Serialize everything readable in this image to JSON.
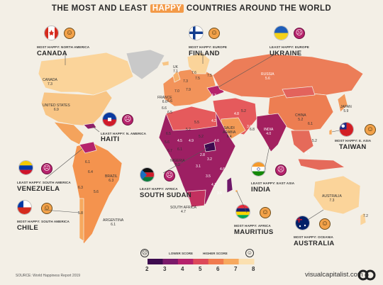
{
  "title": {
    "pre": "THE MOST AND LEAST ",
    "highlight": "HAPPY",
    "post": " COUNTRIES AROUND THE WORLD"
  },
  "callouts": {
    "canada": {
      "caption": "MOST HAPPY: NORTH AMERICA",
      "name": "CANADA",
      "mood": "happy"
    },
    "finland": {
      "caption": "MOST HAPPY: EUROPE",
      "name": "FINLAND",
      "mood": "happy"
    },
    "ukraine": {
      "caption": "LEAST HAPPY: EUROPE",
      "name": "UKRAINE",
      "mood": "sad"
    },
    "haiti": {
      "caption": "LEAST HAPPY: N. AMERICA",
      "name": "HAITI",
      "mood": "sad"
    },
    "taiwan": {
      "caption": "MOST HAPPY: E. ASIA",
      "name": "TAIWAN",
      "mood": "happy"
    },
    "venezuela": {
      "caption": "LEAST HAPPY: SOUTH AMERICA",
      "name": "VENEZUELA",
      "mood": "sad"
    },
    "south_sudan": {
      "caption": "LEAST HAPPY: AFRICA",
      "name": "SOUTH SUDAN",
      "mood": "sad"
    },
    "india": {
      "caption": "LEAST HAPPY: EAST ASIA",
      "name": "INDIA",
      "mood": "sad"
    },
    "chile": {
      "caption": "MOST HAPPY: SOUTH AMERICA",
      "name": "CHILE",
      "mood": "happy"
    },
    "mauritius": {
      "caption": "MOST HAPPY: AFRICA",
      "name": "MAURITIUS",
      "mood": "happy"
    },
    "australia": {
      "caption": "MOST HAPPY: OCEANIA",
      "name": "AUSTRALIA",
      "mood": "happy"
    }
  },
  "map_labels": {
    "canada": "CANADA\n7.3",
    "usa": "UNITED STATES\n6.9",
    "russia": "RUSSIA\n5.6",
    "china": "CHINA\n5.2",
    "india": "INDIA\n4.0",
    "japan": "JAPAN\n5.9",
    "saudi": "SAUDI\nARABIA\n6.4",
    "nigeria": "NIGERIA\n5.3",
    "south_africa": "SOUTH AFRICA\n4.7",
    "brazil": "BRAZIL\n6.3",
    "argentina": "ARGENTINA\n6.1",
    "australia": "AUSTRALIA\n7.3",
    "france": "FRANCE\n6.6",
    "uk": "UK\n7.1"
  },
  "scores": [
    "7.6",
    "7.5",
    "7.3",
    "7.5",
    "7.9",
    "7.0",
    "6.6",
    "6.6",
    "6.5",
    "4.3",
    "4.8",
    "5.2",
    "3.6",
    "4.2",
    "5.5",
    "5.2",
    "4.5",
    "4.9",
    "5.2",
    "6.5",
    "5.6",
    "6.1",
    "6.7",
    "6.1",
    "6.4",
    "6.3",
    "5.8",
    "5.6",
    "4.6",
    "3.2",
    "3.1",
    "2.8",
    "3.5",
    "4.6",
    "4.7",
    "3.5",
    "6.8",
    "6.1",
    "7.2",
    "5.2",
    "4.5"
  ],
  "legend": {
    "low_label": "LOWER SCORE",
    "high_label": "HIGHER SCORE",
    "ticks": [
      "2",
      "3",
      "4",
      "5",
      "6",
      "7",
      "8"
    ]
  },
  "colors": [
    "#3d0b4f",
    "#7a1a6a",
    "#b5226b",
    "#dd4a5a",
    "#f07a4e",
    "#f7a95e",
    "#fbe0b0"
  ],
  "source": "SOURCE: World Happiness Report 2019",
  "brand": "visualcapitalist.com"
}
